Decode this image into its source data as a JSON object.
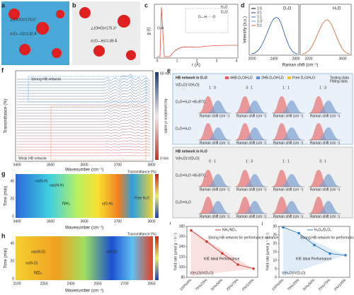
{
  "panels": {
    "a": {
      "label": "a",
      "notes": [
        "∠(OOO)=175.5°",
        "d (O—O)=2.82 Å"
      ]
    },
    "b": {
      "label": "b",
      "notes": [
        "∠(OHO)=175.3°",
        "d (O—H)=1.89 Å"
      ]
    },
    "c": {
      "label": "c",
      "ylabel": "g (r)",
      "xlabel": "r (Å)",
      "xticks": [
        "0",
        "1",
        "2",
        "3",
        "4"
      ],
      "peak": "O-H",
      "inset": "O—H·····O",
      "legend": [
        "H₂O",
        "D₂O"
      ]
    },
    "d": {
      "label": "d",
      "ylabel": "Intensity (a.u.)",
      "xlabel": "Raman shift (cm⁻¹)",
      "left": "D₂O",
      "right": "H₂O",
      "legend": [
        "1:0",
        "3:1",
        "1:1",
        "1:3",
        "0:1"
      ],
      "xticks_left": [
        "2000",
        "2400",
        "2800"
      ],
      "xticks_right": [
        "3200",
        "3600"
      ]
    },
    "f": {
      "label": "f",
      "ylabel": "Transmittance (%)",
      "xlabel": "Wavenumber (cm⁻¹)",
      "xticks": [
        "3400",
        "3500",
        "3600",
        "3700",
        "3800"
      ],
      "strong": "Strong HB network",
      "weak": "Weak HB network",
      "cbar_top": "60 min",
      "cbar_bottom": "0 min",
      "cbar_title": "Accumulation of water"
    },
    "e": {
      "label": "e",
      "d2o": {
        "title": "HB network in D₂O",
        "head": "V(D₂O):V(H₂O)",
        "ratios": [
          "1 : 0",
          "3 : 1",
          "1 : 1",
          "1 : 3"
        ],
        "rows": [
          "D₂O+H₂O +Bi-BTC",
          "D₂O+H₂O"
        ]
      },
      "h2o": {
        "title": "HB network in H₂O",
        "head": "V(H₂O):V(D₂O)",
        "ratios": [
          "0 : 1",
          "1 : 3",
          "1 : 1",
          "3 : 1"
        ],
        "rows": [
          "D₂O+H₂O +Bi-BTC",
          "D₂O+H₂O"
        ]
      },
      "legend": [
        "4HB-D₂O/H₂O",
        "2HB-D₂O/H₂O",
        "Free D₂O/H₂O"
      ],
      "fit_legend": [
        "Testing data",
        "Fitting data"
      ],
      "xlabel": "Raman shift (cm⁻¹)"
    },
    "g": {
      "label": "g",
      "ylabel": "Time (min)",
      "xlabel": "Wavenumber (cm⁻¹)",
      "xticks": [
        "3400",
        "3500",
        "3600",
        "3700",
        "3800"
      ],
      "yticks": [
        "0",
        "20",
        "40"
      ],
      "cbar": "Transmittance (%)",
      "marks": [
        "νs(N-H)",
        "νas(N-H)",
        "NH₃",
        "ν(O-H)",
        "Free H₂O"
      ]
    },
    "h": {
      "label": "h",
      "ylabel": "Time (min)",
      "xlabel": "Wavenumber (cm⁻¹)",
      "xticks": [
        "2100",
        "2250",
        "2400",
        "2550",
        "2700",
        "2850"
      ],
      "yticks": [
        "0",
        "20",
        "40"
      ],
      "cbar": "Transmittance (%)",
      "marks": [
        "νs(N-D)",
        "νas(N-D)",
        "ND₃",
        "ν(O-D)"
      ]
    }
  },
  "chart_data": [
    {
      "type": "line",
      "label": "i",
      "ylabel": "Yield rate (μmol g⁻¹ h⁻¹)",
      "xlabel": "V(H₂O)/V(D₂O)",
      "categories": [
        "100%/0%",
        "75%/25%",
        "50%/50%",
        "25%/75%",
        "0%/100%"
      ],
      "series": [
        {
          "name": "NH₃/ND₃",
          "color": "#d9352f",
          "values": [
            172,
            150,
            127,
            105,
            97
          ]
        }
      ],
      "ylim": [
        80,
        180
      ],
      "yticks": [
        80,
        100,
        120,
        140,
        160,
        180
      ],
      "annotations": [
        "Strong HB network for performance enhance",
        "KIE Ideal Performance"
      ]
    },
    {
      "type": "line",
      "label": "j",
      "ylabel": "Yield rate (μmol g⁻¹ h⁻¹)",
      "xlabel": "V(H₂O)/V(D₂O)",
      "categories": [
        "100%/0%",
        "75%/25%",
        "50%/50%",
        "25%/75%",
        "0%/100%"
      ],
      "series": [
        {
          "name": "H₂O₂/D₂O₂",
          "color": "#2f7fc1",
          "values": [
            29.5,
            26,
            19,
            14,
            13
          ]
        }
      ],
      "ylim": [
        0,
        30
      ],
      "yticks": [
        0,
        5,
        10,
        15,
        20,
        25,
        30
      ],
      "annotations": [
        "Strong HB network for performance enhance",
        "KIE Ideal Performance"
      ]
    }
  ]
}
